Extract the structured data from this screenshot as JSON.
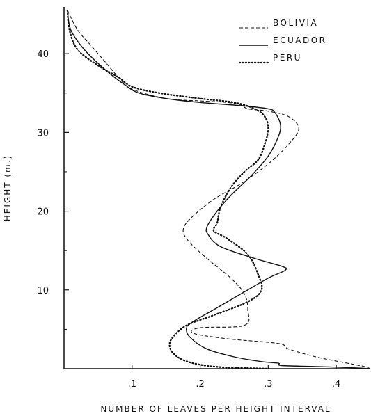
{
  "chart_data": {
    "type": "line",
    "xlabel": "NUMBER OF LEAVES PER HEIGHT INTERVAL",
    "ylabel": "HEIGHT (m.)",
    "xlim": [
      0,
      0.45
    ],
    "ylim": [
      0,
      46
    ],
    "x_ticks": [
      {
        "value": 0.1,
        "label": ".1"
      },
      {
        "value": 0.2,
        "label": ".2"
      },
      {
        "value": 0.3,
        "label": ".3"
      },
      {
        "value": 0.4,
        "label": ".4"
      }
    ],
    "y_ticks": [
      {
        "value": 10,
        "label": "10"
      },
      {
        "value": 20,
        "label": "20"
      },
      {
        "value": 30,
        "label": "30"
      },
      {
        "value": 40,
        "label": "40"
      }
    ],
    "minor_y_ticks": [
      5,
      15,
      25,
      35
    ],
    "grid": false,
    "legend_position": "top-right",
    "series": [
      {
        "name": "BOLIVIA",
        "style": "dashed",
        "points": [
          [
            0.005,
            45.5
          ],
          [
            0.02,
            43
          ],
          [
            0.04,
            41
          ],
          [
            0.06,
            39
          ],
          [
            0.08,
            37
          ],
          [
            0.1,
            35.5
          ],
          [
            0.15,
            34.3
          ],
          [
            0.2,
            34
          ],
          [
            0.24,
            33.8
          ],
          [
            0.26,
            33.5
          ],
          [
            0.27,
            33
          ],
          [
            0.3,
            32.7
          ],
          [
            0.33,
            32
          ],
          [
            0.345,
            30.5
          ],
          [
            0.33,
            28.5
          ],
          [
            0.3,
            26
          ],
          [
            0.26,
            23.5
          ],
          [
            0.22,
            21.5
          ],
          [
            0.185,
            19
          ],
          [
            0.175,
            17.5
          ],
          [
            0.185,
            16
          ],
          [
            0.21,
            14
          ],
          [
            0.245,
            11.5
          ],
          [
            0.265,
            9.5
          ],
          [
            0.27,
            7.5
          ],
          [
            0.265,
            5.5
          ],
          [
            0.2,
            5.2
          ],
          [
            0.19,
            4.5
          ],
          [
            0.24,
            3.8
          ],
          [
            0.315,
            3.2
          ],
          [
            0.33,
            2.5
          ],
          [
            0.37,
            1.5
          ],
          [
            0.41,
            0.8
          ],
          [
            0.44,
            0.3
          ],
          [
            0.45,
            0
          ]
        ]
      },
      {
        "name": "ECUADOR",
        "style": "solid",
        "points": [
          [
            0.005,
            45.5
          ],
          [
            0.01,
            43
          ],
          [
            0.03,
            40.5
          ],
          [
            0.06,
            38
          ],
          [
            0.09,
            36
          ],
          [
            0.11,
            35
          ],
          [
            0.15,
            34.3
          ],
          [
            0.2,
            33.8
          ],
          [
            0.26,
            33.4
          ],
          [
            0.3,
            33
          ],
          [
            0.31,
            32.5
          ],
          [
            0.318,
            31
          ],
          [
            0.315,
            29.5
          ],
          [
            0.3,
            27
          ],
          [
            0.275,
            24.5
          ],
          [
            0.245,
            22
          ],
          [
            0.225,
            20
          ],
          [
            0.21,
            18
          ],
          [
            0.212,
            17
          ],
          [
            0.23,
            15.5
          ],
          [
            0.28,
            14
          ],
          [
            0.32,
            13
          ],
          [
            0.325,
            12.5
          ],
          [
            0.3,
            11.5
          ],
          [
            0.26,
            9.5
          ],
          [
            0.22,
            7.5
          ],
          [
            0.19,
            6
          ],
          [
            0.18,
            5.2
          ],
          [
            0.185,
            4
          ],
          [
            0.21,
            2.5
          ],
          [
            0.25,
            1.5
          ],
          [
            0.29,
            0.9
          ],
          [
            0.315,
            0.7
          ],
          [
            0.32,
            0.4
          ],
          [
            0.38,
            0.25
          ],
          [
            0.43,
            0.1
          ],
          [
            0.45,
            0
          ]
        ]
      },
      {
        "name": "PERU",
        "style": "dotted",
        "points": [
          [
            0.005,
            45.5
          ],
          [
            0.008,
            43
          ],
          [
            0.02,
            40.5
          ],
          [
            0.05,
            38.5
          ],
          [
            0.08,
            37
          ],
          [
            0.1,
            35.8
          ],
          [
            0.14,
            35
          ],
          [
            0.2,
            34.3
          ],
          [
            0.25,
            33.8
          ],
          [
            0.28,
            33
          ],
          [
            0.295,
            32
          ],
          [
            0.3,
            30.5
          ],
          [
            0.295,
            28.5
          ],
          [
            0.285,
            26.5
          ],
          [
            0.265,
            25
          ],
          [
            0.245,
            23
          ],
          [
            0.23,
            20.5
          ],
          [
            0.225,
            18.5
          ],
          [
            0.22,
            17.5
          ],
          [
            0.24,
            16.5
          ],
          [
            0.27,
            14.5
          ],
          [
            0.285,
            12
          ],
          [
            0.29,
            10
          ],
          [
            0.27,
            8.5
          ],
          [
            0.22,
            6.8
          ],
          [
            0.18,
            5.5
          ],
          [
            0.16,
            4
          ],
          [
            0.155,
            3
          ],
          [
            0.16,
            2
          ],
          [
            0.175,
            1.1
          ],
          [
            0.2,
            0.5
          ],
          [
            0.23,
            0.2
          ],
          [
            0.27,
            0.08
          ],
          [
            0.3,
            0
          ]
        ]
      }
    ]
  }
}
